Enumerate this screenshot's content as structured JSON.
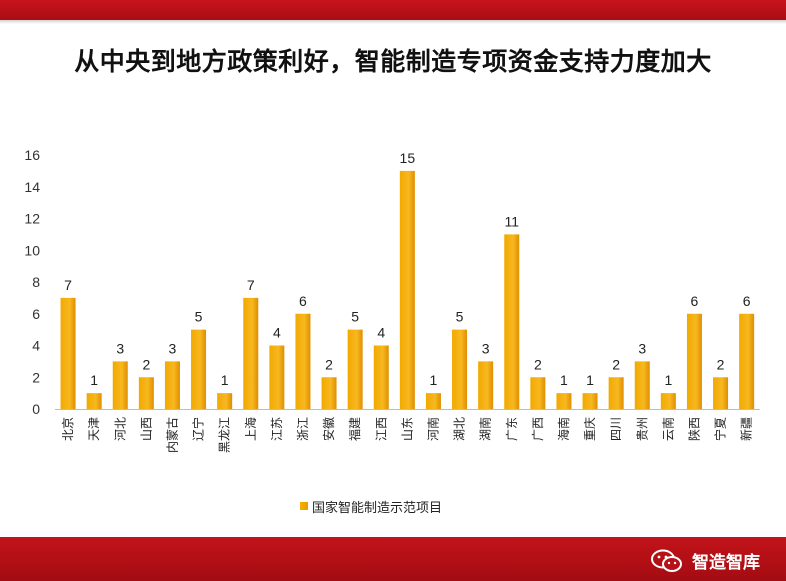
{
  "slide": {
    "title": "从中央到地方政策利好，智能制造专项资金支持力度加大"
  },
  "watermark": {
    "text": "智造智库",
    "icon": "wechat-icon"
  },
  "colors": {
    "bar": "#f2a900",
    "bar_dark": "#e08e00",
    "band": "#b81018"
  },
  "chart_data": {
    "type": "bar",
    "categories": [
      "北京",
      "天津",
      "河北",
      "山西",
      "内蒙古",
      "辽宁",
      "黑龙江",
      "上海",
      "江苏",
      "浙江",
      "安徽",
      "福建",
      "江西",
      "山东",
      "河南",
      "湖北",
      "湖南",
      "广东",
      "广西",
      "海南",
      "重庆",
      "四川",
      "贵州",
      "云南",
      "陕西",
      "宁夏",
      "新疆"
    ],
    "series": [
      {
        "name": "国家智能制造示范项目",
        "values": [
          7,
          1,
          3,
          2,
          3,
          5,
          1,
          7,
          4,
          6,
          2,
          5,
          4,
          15,
          1,
          5,
          3,
          11,
          2,
          1,
          1,
          2,
          3,
          1,
          6,
          2,
          6
        ]
      }
    ],
    "yticks": [
      "0",
      "2",
      "4",
      "6",
      "8",
      "10",
      "12",
      "14",
      "16"
    ],
    "ylim": [
      0,
      16
    ],
    "grid": false,
    "legend_position": "bottom"
  }
}
